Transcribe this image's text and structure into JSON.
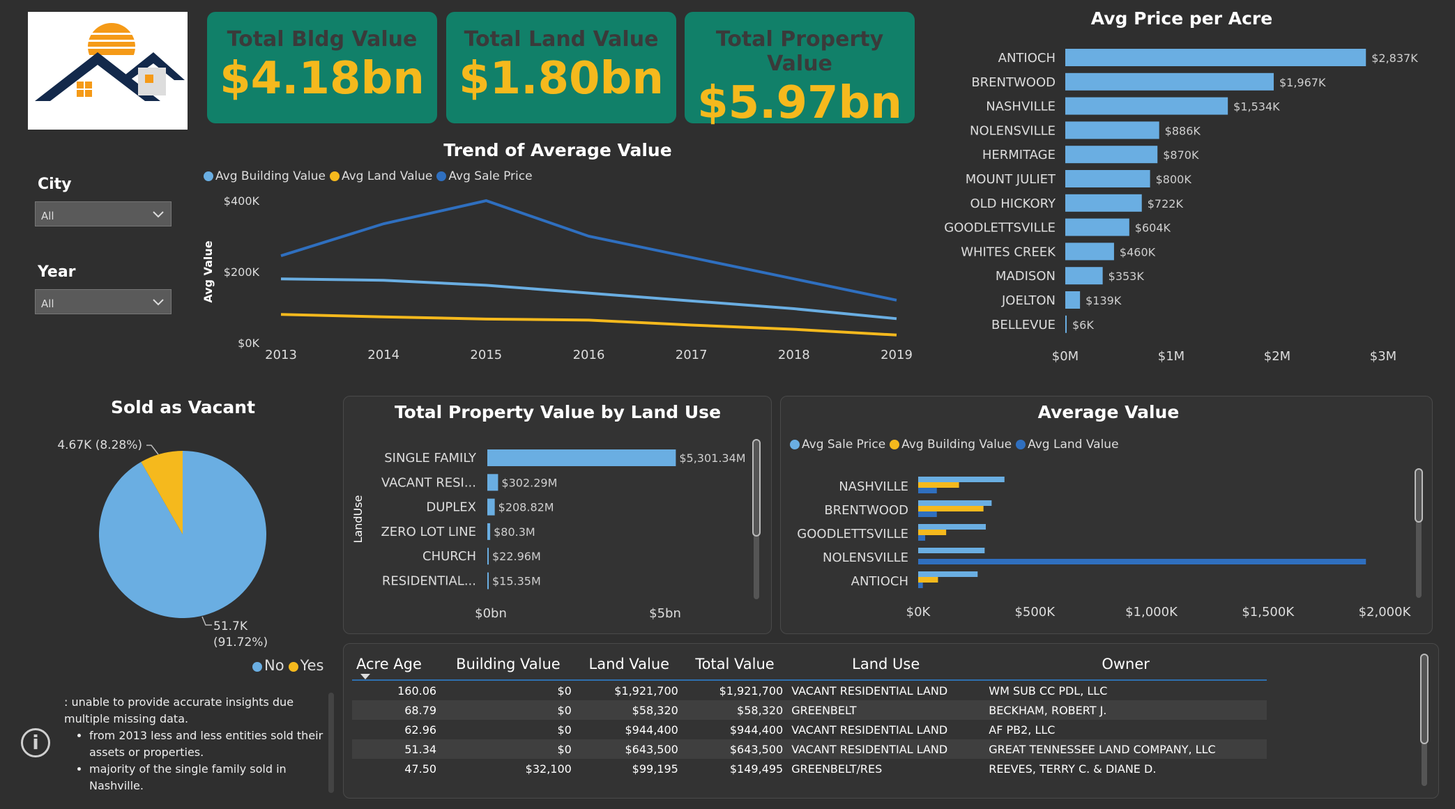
{
  "kpis": [
    {
      "label": "Total Bldg Value",
      "value": "$4.18bn"
    },
    {
      "label": "Total Land Value",
      "value": "$1.80bn"
    },
    {
      "label": "Total Property Value",
      "value": "$5.97bn"
    }
  ],
  "filters": {
    "city": {
      "label": "City",
      "value": "All"
    },
    "year": {
      "label": "Year",
      "value": "All"
    }
  },
  "note": {
    "intro": ": unable to provide accurate insights due multiple missing data.",
    "bullets": [
      "from 2013 less and less entities sold their assets or properties.",
      "majority of the single family sold in Nashville."
    ]
  },
  "colors": {
    "background": "#2f2f2f",
    "kpi_bg": "#118069",
    "kpi_value": "#f5b91d",
    "light_blue": "#6aaee2",
    "yellow": "#f5b91d",
    "dark_blue": "#2f6fbf"
  },
  "table": {
    "columns": [
      "Acre Age",
      "Building Value",
      "Land Value",
      "Total Value",
      "Land Use",
      "Owner"
    ],
    "rows": [
      [
        "160.06",
        "$0",
        "$1,921,700",
        "$1,921,700",
        "VACANT RESIDENTIAL LAND",
        "WM SUB CC PDL, LLC"
      ],
      [
        "68.79",
        "$0",
        "$58,320",
        "$58,320",
        "GREENBELT",
        "BECKHAM, ROBERT J."
      ],
      [
        "62.96",
        "$0",
        "$944,400",
        "$944,400",
        "VACANT RESIDENTIAL LAND",
        "AF PB2, LLC"
      ],
      [
        "51.34",
        "$0",
        "$643,500",
        "$643,500",
        "VACANT RESIDENTIAL LAND",
        "GREAT TENNESSEE LAND COMPANY, LLC"
      ],
      [
        "47.50",
        "$32,100",
        "$99,195",
        "$149,495",
        "GREENBELT/RES",
        "REEVES, TERRY C. & DIANE D."
      ]
    ]
  },
  "chart_data": [
    {
      "id": "trend",
      "type": "line",
      "title": "Trend of Average Value",
      "ylabel": "Avg Value",
      "x": [
        "2013",
        "2014",
        "2015",
        "2016",
        "2017",
        "2018",
        "2019"
      ],
      "ylim": [
        0,
        400000
      ],
      "yticks": [
        0,
        200000,
        400000
      ],
      "ytick_labels": [
        "$0K",
        "$200K",
        "$400K"
      ],
      "legend_position": "top-left",
      "series": [
        {
          "name": "Avg Building Value",
          "color": "#6aaee2",
          "values": [
            180000,
            176000,
            162000,
            140000,
            118000,
            96000,
            68000
          ]
        },
        {
          "name": "Avg Land Value",
          "color": "#f5b91d",
          "values": [
            80000,
            73000,
            67000,
            64000,
            50000,
            38000,
            22000
          ]
        },
        {
          "name": "Avg Sale Price",
          "color": "#2f6fbf",
          "values": [
            245000,
            335000,
            400000,
            300000,
            240000,
            180000,
            120000
          ]
        }
      ]
    },
    {
      "id": "acre",
      "type": "bar",
      "orientation": "horizontal",
      "title": "Avg Price per Acre",
      "categories": [
        "ANTIOCH",
        "BRENTWOOD",
        "NASHVILLE",
        "NOLENSVILLE",
        "HERMITAGE",
        "MOUNT JULIET",
        "OLD HICKORY",
        "GOODLETTSVILLE",
        "WHITES CREEK",
        "MADISON",
        "JOELTON",
        "BELLEVUE"
      ],
      "values": [
        2837,
        1967,
        1534,
        886,
        870,
        800,
        722,
        604,
        460,
        353,
        139,
        6
      ],
      "value_labels": [
        "$2,837K",
        "$1,967K",
        "$1,534K",
        "$886K",
        "$870K",
        "$800K",
        "$722K",
        "$604K",
        "$460K",
        "$353K",
        "$139K",
        "$6K"
      ],
      "xlim": [
        0,
        3000
      ],
      "xticks": [
        0,
        1000,
        2000,
        3000
      ],
      "xtick_labels": [
        "$0M",
        "$1M",
        "$2M",
        "$3M"
      ],
      "color": "#6aaee2"
    },
    {
      "id": "vacant",
      "type": "pie",
      "title": "Sold as Vacant",
      "slices": [
        {
          "name": "No",
          "value": 91.72,
          "label": "51.7K",
          "pct_label": "(91.72%)",
          "color": "#6aaee2"
        },
        {
          "name": "Yes",
          "value": 8.28,
          "label": "4.67K (8.28%)",
          "color": "#f5b91d"
        }
      ],
      "legend": [
        "No",
        "Yes"
      ],
      "legend_position": "bottom-right"
    },
    {
      "id": "landuse",
      "type": "bar",
      "orientation": "horizontal",
      "title": "Total Property Value by Land Use",
      "ylabel": "LandUse",
      "categories": [
        "SINGLE FAMILY",
        "VACANT RESI...",
        "DUPLEX",
        "ZERO LOT LINE",
        "CHURCH",
        "RESIDENTIAL..."
      ],
      "values": [
        5301.34,
        302.29,
        208.82,
        80.3,
        22.96,
        15.35
      ],
      "value_labels": [
        "$5,301.34M",
        "$302.29M",
        "$208.82M",
        "$80.3M",
        "$22.96M",
        "$15.35M"
      ],
      "xlim": [
        0,
        5000
      ],
      "xticks": [
        0,
        5000
      ],
      "xtick_labels": [
        "$0bn",
        "$5bn"
      ],
      "color": "#6aaee2"
    },
    {
      "id": "avgval",
      "type": "bar",
      "orientation": "horizontal",
      "title": "Average Value",
      "categories": [
        "NASHVILLE",
        "BRENTWOOD",
        "GOODLETTSVILLE",
        "NOLENSVILLE",
        "ANTIOCH"
      ],
      "xlim": [
        0,
        2000000
      ],
      "xticks": [
        0,
        500000,
        1000000,
        1500000,
        2000000
      ],
      "xtick_labels": [
        "$0K",
        "$500K",
        "$1,000K",
        "$1,500K",
        "$2,000K"
      ],
      "legend_position": "top-left",
      "series": [
        {
          "name": "Avg Sale Price",
          "color": "#6aaee2",
          "values": [
            370000,
            315000,
            290000,
            285000,
            255000
          ]
        },
        {
          "name": "Avg Building Value",
          "color": "#f5b91d",
          "values": [
            175000,
            280000,
            120000,
            0,
            85000
          ]
        },
        {
          "name": "Avg Land Value",
          "color": "#2f6fbf",
          "values": [
            80000,
            80000,
            30000,
            1920000,
            20000
          ]
        }
      ]
    }
  ]
}
